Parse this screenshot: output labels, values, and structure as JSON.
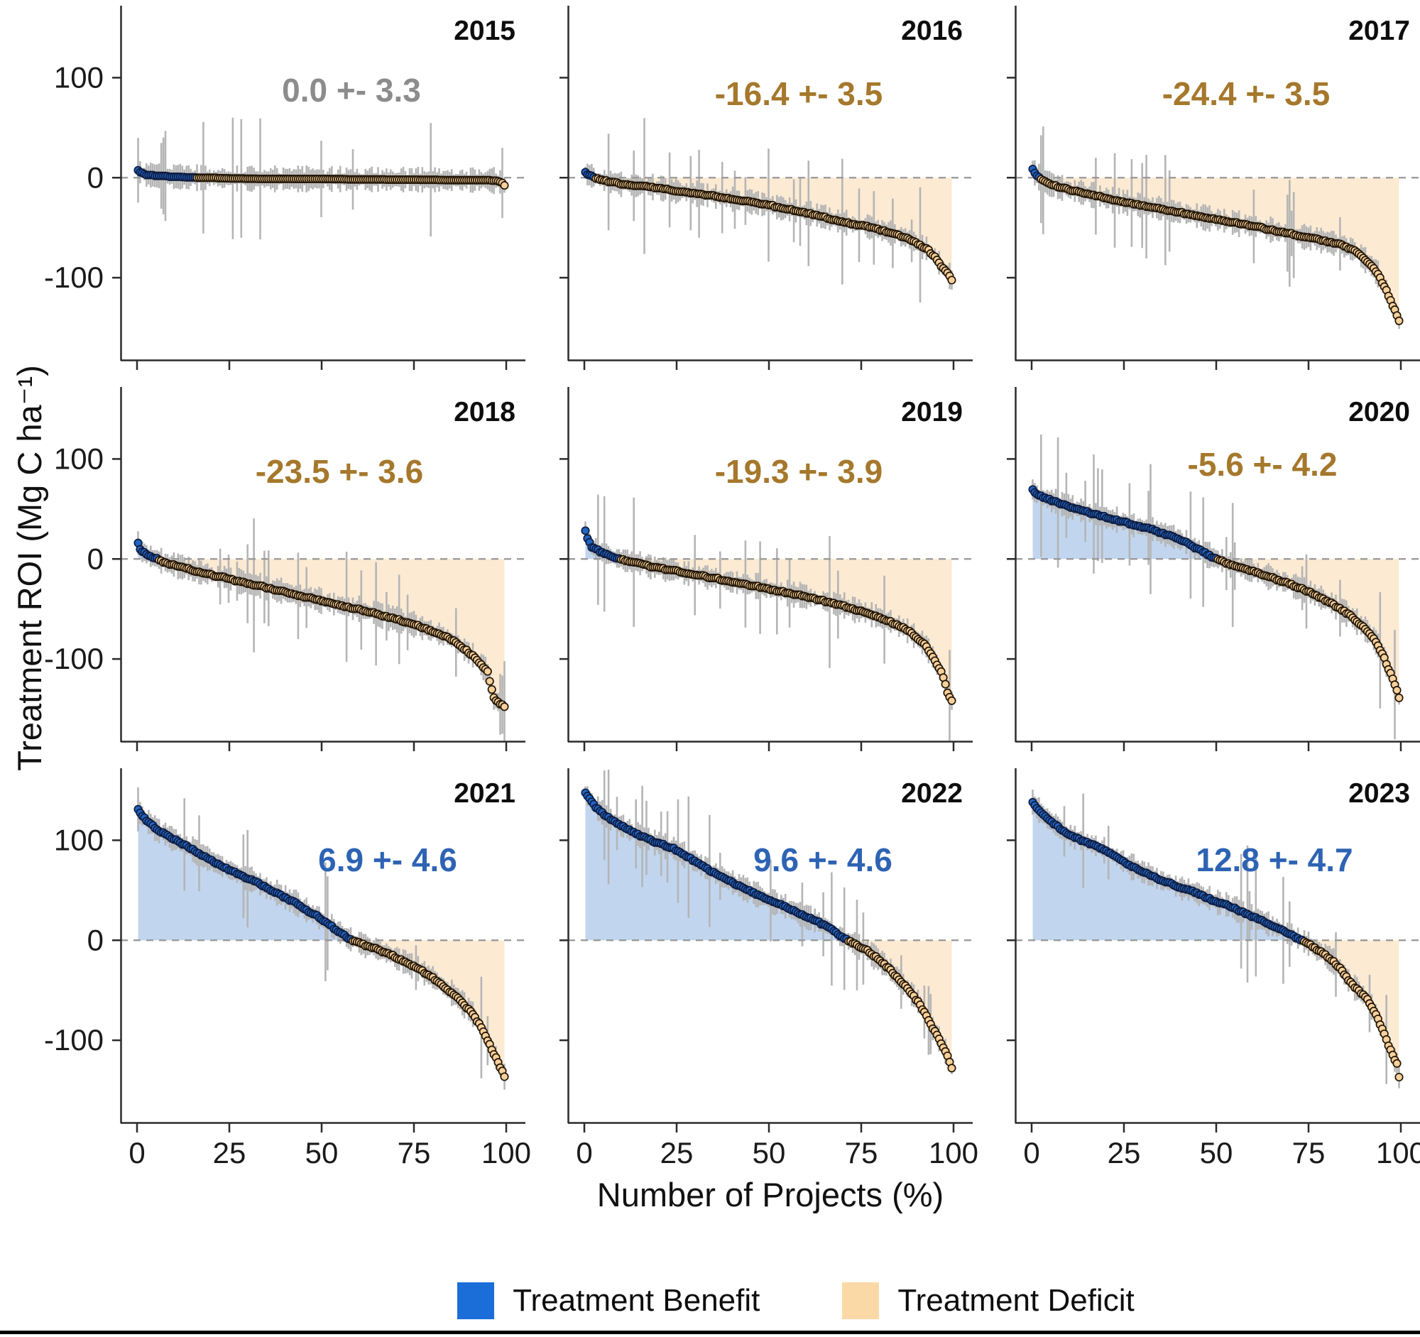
{
  "figure": {
    "y_axis_label": "Treatment ROI (Mg C ha⁻¹)",
    "x_axis_label": "Number of Projects (%)"
  },
  "axis": {
    "y_ticks": [
      {
        "label": "100",
        "value": 100
      },
      {
        "label": "0",
        "value": 0
      },
      {
        "label": "-100",
        "value": -100
      }
    ],
    "x_ticks": [
      {
        "label": "0",
        "value": 0
      },
      {
        "label": "25",
        "value": 25
      },
      {
        "label": "50",
        "value": 50
      },
      {
        "label": "75",
        "value": 75
      },
      {
        "label": "100",
        "value": 100
      }
    ],
    "y_range": [
      -183,
      172
    ],
    "x_range": [
      0,
      100
    ]
  },
  "legend": {
    "items": [
      {
        "label": "Treatment Benefit",
        "key": "benefit",
        "color": "#1b6ed8"
      },
      {
        "label": "Treatment Deficit",
        "key": "deficit",
        "color": "#fbd9a6"
      }
    ]
  },
  "colors": {
    "benefit_point": "#2265c4",
    "benefit_point_stroke": "#0e1c3f",
    "deficit_point": "#f8d09a",
    "deficit_point_stroke": "#201405",
    "area_benefit": "#c1d5ee",
    "area_deficit": "#fcead3",
    "error_bar": "#b5b5b5",
    "zero_line": "#979797",
    "spine": "#2b2b2b",
    "annotation": {
      "neutral": "#8c8c8c",
      "deficit": "#a5782c",
      "benefit": "#2e63b4"
    }
  },
  "chart_data": {
    "type": "scatter",
    "title": "",
    "xlabel": "Number of Projects (%)",
    "ylabel": "Treatment ROI (Mg C ha⁻¹)",
    "legend_position": "bottom",
    "grid": false,
    "zero_line_dashed": true,
    "error_bars": true,
    "xlim": [
      0,
      100
    ],
    "ylim": [
      -183,
      172
    ],
    "panels": [
      {
        "year": "2015",
        "annotation": "0.0 +- 3.3",
        "mean": 0.0,
        "se": 3.3,
        "annotation_color": "neutral",
        "curve": [
          [
            0,
            8
          ],
          [
            1,
            5
          ],
          [
            3,
            3
          ],
          [
            6,
            2
          ],
          [
            10,
            1.5
          ],
          [
            15,
            1
          ],
          [
            23,
            0
          ],
          [
            40,
            -0.5
          ],
          [
            60,
            -1
          ],
          [
            80,
            -1.5
          ],
          [
            95,
            -2
          ],
          [
            98,
            -3
          ],
          [
            99.5,
            -8
          ]
        ]
      },
      {
        "year": "2016",
        "annotation": "-16.4 +- 3.5",
        "mean": -16.4,
        "se": 3.5,
        "annotation_color": "deficit",
        "curve": [
          [
            0,
            6
          ],
          [
            1,
            3
          ],
          [
            3,
            0
          ],
          [
            6,
            -3
          ],
          [
            10,
            -6
          ],
          [
            18,
            -9
          ],
          [
            25,
            -13
          ],
          [
            35,
            -18
          ],
          [
            45,
            -24
          ],
          [
            55,
            -31
          ],
          [
            62,
            -37
          ],
          [
            70,
            -44
          ],
          [
            78,
            -50
          ],
          [
            85,
            -57
          ],
          [
            90,
            -65
          ],
          [
            93,
            -72
          ],
          [
            95,
            -80
          ],
          [
            97,
            -90
          ],
          [
            99,
            -98
          ],
          [
            99.5,
            -102
          ]
        ]
      },
      {
        "year": "2017",
        "annotation": "-24.4 +- 3.5",
        "mean": -24.4,
        "se": 3.5,
        "annotation_color": "deficit",
        "curve": [
          [
            0,
            10
          ],
          [
            1,
            4
          ],
          [
            2,
            0
          ],
          [
            4,
            -5
          ],
          [
            8,
            -10
          ],
          [
            15,
            -16
          ],
          [
            25,
            -24
          ],
          [
            35,
            -31
          ],
          [
            45,
            -38
          ],
          [
            55,
            -45
          ],
          [
            62,
            -50
          ],
          [
            70,
            -56
          ],
          [
            78,
            -62
          ],
          [
            83,
            -66
          ],
          [
            87,
            -72
          ],
          [
            90,
            -80
          ],
          [
            92,
            -88
          ],
          [
            94,
            -98
          ],
          [
            96,
            -112
          ],
          [
            97.5,
            -125
          ],
          [
            99,
            -138
          ],
          [
            99.8,
            -145
          ]
        ]
      },
      {
        "year": "2018",
        "annotation": "-23.5 +- 3.6",
        "mean": -23.5,
        "se": 3.6,
        "annotation_color": "deficit",
        "curve": [
          [
            0,
            20
          ],
          [
            0.7,
            10
          ],
          [
            2,
            6
          ],
          [
            4,
            2
          ],
          [
            5.5,
            0
          ],
          [
            8,
            -4
          ],
          [
            12,
            -8
          ],
          [
            18,
            -14
          ],
          [
            25,
            -20
          ],
          [
            32,
            -26
          ],
          [
            40,
            -33
          ],
          [
            48,
            -40
          ],
          [
            55,
            -46
          ],
          [
            62,
            -52
          ],
          [
            68,
            -58
          ],
          [
            74,
            -64
          ],
          [
            80,
            -72
          ],
          [
            85,
            -80
          ],
          [
            88,
            -88
          ],
          [
            91,
            -97
          ],
          [
            93,
            -105
          ],
          [
            95,
            -113
          ],
          [
            96.5,
            -138
          ],
          [
            98,
            -144
          ],
          [
            99.5,
            -148
          ]
        ]
      },
      {
        "year": "2019",
        "annotation": "-19.3 +- 3.9",
        "mean": -19.3,
        "se": 3.9,
        "annotation_color": "deficit",
        "curve": [
          [
            0,
            32
          ],
          [
            0.7,
            22
          ],
          [
            2,
            12
          ],
          [
            4,
            8
          ],
          [
            6,
            5
          ],
          [
            8,
            2
          ],
          [
            10,
            0
          ],
          [
            15,
            -5
          ],
          [
            20,
            -9
          ],
          [
            28,
            -14
          ],
          [
            35,
            -19
          ],
          [
            42,
            -24
          ],
          [
            50,
            -30
          ],
          [
            58,
            -36
          ],
          [
            65,
            -42
          ],
          [
            72,
            -49
          ],
          [
            78,
            -56
          ],
          [
            83,
            -63
          ],
          [
            87,
            -70
          ],
          [
            90,
            -78
          ],
          [
            92,
            -85
          ],
          [
            94,
            -95
          ],
          [
            95.5,
            -105
          ],
          [
            97,
            -115
          ],
          [
            98.5,
            -135
          ],
          [
            99.5,
            -142
          ]
        ]
      },
      {
        "year": "2020",
        "annotation": "-5.6 +- 4.2",
        "mean": -5.6,
        "se": 4.2,
        "annotation_color": "deficit",
        "curve": [
          [
            0,
            72
          ],
          [
            1,
            65
          ],
          [
            3,
            62
          ],
          [
            6,
            58
          ],
          [
            9,
            54
          ],
          [
            13,
            49
          ],
          [
            17,
            45
          ],
          [
            21,
            41
          ],
          [
            25,
            37
          ],
          [
            29,
            33
          ],
          [
            33,
            29
          ],
          [
            36,
            25
          ],
          [
            39,
            21
          ],
          [
            42,
            16
          ],
          [
            44,
            12
          ],
          [
            46,
            8
          ],
          [
            48,
            4
          ],
          [
            50,
            0
          ],
          [
            53,
            -4
          ],
          [
            57,
            -9
          ],
          [
            62,
            -15
          ],
          [
            67,
            -21
          ],
          [
            72,
            -28
          ],
          [
            77,
            -36
          ],
          [
            81,
            -44
          ],
          [
            85,
            -53
          ],
          [
            88,
            -62
          ],
          [
            91,
            -72
          ],
          [
            93,
            -82
          ],
          [
            95,
            -95
          ],
          [
            96.5,
            -108
          ],
          [
            98,
            -122
          ],
          [
            99.5,
            -138
          ]
        ]
      },
      {
        "year": "2021",
        "annotation": "6.9 +- 4.6",
        "mean": 6.9,
        "se": 4.6,
        "annotation_color": "benefit",
        "curve": [
          [
            0,
            133
          ],
          [
            1,
            126
          ],
          [
            3,
            118
          ],
          [
            5,
            112
          ],
          [
            8,
            105
          ],
          [
            11,
            99
          ],
          [
            14,
            93
          ],
          [
            17,
            86
          ],
          [
            20,
            80
          ],
          [
            24,
            72
          ],
          [
            28,
            65
          ],
          [
            31,
            60
          ],
          [
            34,
            55
          ],
          [
            37,
            49
          ],
          [
            40,
            43
          ],
          [
            43,
            37
          ],
          [
            46,
            30
          ],
          [
            49,
            24
          ],
          [
            52,
            16
          ],
          [
            54,
            10
          ],
          [
            56,
            5
          ],
          [
            58,
            0
          ],
          [
            61,
            -4
          ],
          [
            65,
            -9
          ],
          [
            69,
            -15
          ],
          [
            73,
            -22
          ],
          [
            77,
            -30
          ],
          [
            81,
            -40
          ],
          [
            85,
            -52
          ],
          [
            88,
            -62
          ],
          [
            90,
            -70
          ],
          [
            92,
            -80
          ],
          [
            94,
            -92
          ],
          [
            96,
            -108
          ],
          [
            97.5,
            -120
          ],
          [
            99,
            -132
          ],
          [
            99.8,
            -140
          ]
        ]
      },
      {
        "year": "2022",
        "annotation": "9.6 +- 4.6",
        "mean": 9.6,
        "se": 4.6,
        "annotation_color": "benefit",
        "curve": [
          [
            0,
            150
          ],
          [
            1,
            143
          ],
          [
            3,
            133
          ],
          [
            6,
            124
          ],
          [
            9,
            117
          ],
          [
            12,
            111
          ],
          [
            15,
            105
          ],
          [
            18,
            100
          ],
          [
            21,
            96
          ],
          [
            24,
            92
          ],
          [
            27,
            85
          ],
          [
            30,
            79
          ],
          [
            33,
            72
          ],
          [
            36,
            66
          ],
          [
            39,
            60
          ],
          [
            42,
            54
          ],
          [
            45,
            49
          ],
          [
            48,
            44
          ],
          [
            51,
            39
          ],
          [
            54,
            34
          ],
          [
            57,
            29
          ],
          [
            60,
            24
          ],
          [
            63,
            19
          ],
          [
            66,
            13
          ],
          [
            68,
            8
          ],
          [
            70,
            3
          ],
          [
            71.5,
            0
          ],
          [
            74,
            -5
          ],
          [
            77,
            -11
          ],
          [
            80,
            -20
          ],
          [
            83,
            -30
          ],
          [
            86,
            -42
          ],
          [
            89,
            -55
          ],
          [
            91,
            -65
          ],
          [
            93,
            -78
          ],
          [
            95,
            -92
          ],
          [
            96.5,
            -102
          ],
          [
            98,
            -112
          ],
          [
            99,
            -122
          ],
          [
            99.8,
            -130
          ]
        ]
      },
      {
        "year": "2023",
        "annotation": "12.8 +- 4.7",
        "mean": 12.8,
        "se": 4.7,
        "annotation_color": "benefit",
        "curve": [
          [
            0,
            140
          ],
          [
            1,
            134
          ],
          [
            3,
            126
          ],
          [
            5,
            119
          ],
          [
            8,
            111
          ],
          [
            11,
            104
          ],
          [
            14,
            99
          ],
          [
            17,
            95
          ],
          [
            20,
            90
          ],
          [
            23,
            83
          ],
          [
            26,
            76
          ],
          [
            29,
            70
          ],
          [
            32,
            65
          ],
          [
            35,
            60
          ],
          [
            38,
            56
          ],
          [
            41,
            52
          ],
          [
            44,
            48
          ],
          [
            47,
            43
          ],
          [
            50,
            39
          ],
          [
            53,
            35
          ],
          [
            56,
            30
          ],
          [
            59,
            25
          ],
          [
            62,
            20
          ],
          [
            65,
            15
          ],
          [
            68,
            10
          ],
          [
            70,
            6
          ],
          [
            72,
            2
          ],
          [
            73.5,
            0
          ],
          [
            76,
            -6
          ],
          [
            79,
            -13
          ],
          [
            82,
            -22
          ],
          [
            84,
            -30
          ],
          [
            85.5,
            -38
          ],
          [
            87,
            -45
          ],
          [
            89,
            -52
          ],
          [
            91,
            -60
          ],
          [
            93,
            -72
          ],
          [
            94.5,
            -85
          ],
          [
            96,
            -98
          ],
          [
            97,
            -108
          ],
          [
            98,
            -116
          ],
          [
            99,
            -124
          ],
          [
            99.8,
            -145
          ]
        ]
      }
    ]
  }
}
